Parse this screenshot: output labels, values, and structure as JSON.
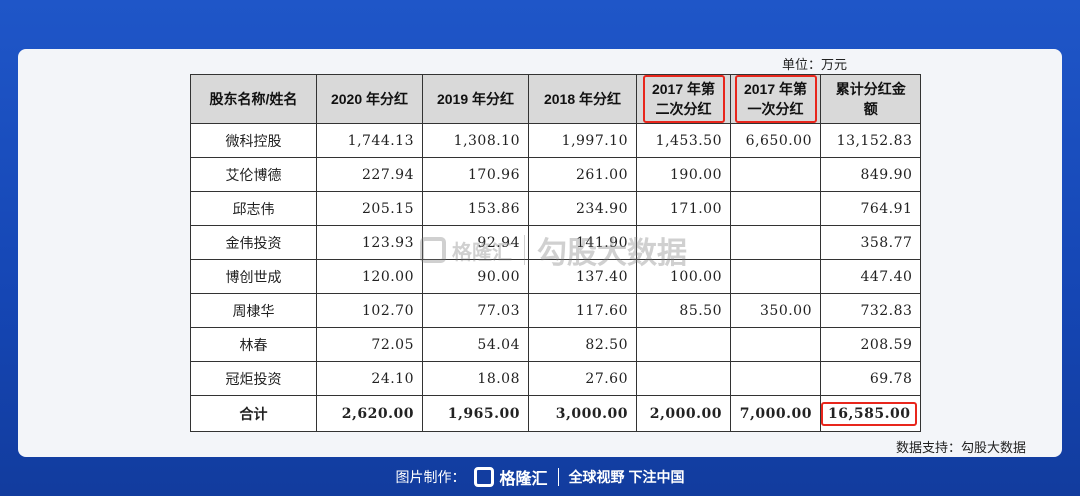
{
  "unit_label": "单位：万元",
  "table": {
    "headers": [
      "股东名称/姓名",
      "2020 年分红",
      "2019 年分红",
      "2018 年分红",
      "2017 年第二次分红",
      "2017 年第一次分红",
      "累计分红金额"
    ],
    "rows": [
      {
        "name": "微科控股",
        "v2020": "1,744.13",
        "v2019": "1,308.10",
        "v2018": "1,997.10",
        "v2017b": "1,453.50",
        "v2017a": "6,650.00",
        "total": "13,152.83"
      },
      {
        "name": "艾伦博德",
        "v2020": "227.94",
        "v2019": "170.96",
        "v2018": "261.00",
        "v2017b": "190.00",
        "v2017a": "",
        "total": "849.90"
      },
      {
        "name": "邱志伟",
        "v2020": "205.15",
        "v2019": "153.86",
        "v2018": "234.90",
        "v2017b": "171.00",
        "v2017a": "",
        "total": "764.91"
      },
      {
        "name": "金伟投资",
        "v2020": "123.93",
        "v2019": "92.94",
        "v2018": "141.90",
        "v2017b": "",
        "v2017a": "",
        "total": "358.77"
      },
      {
        "name": "博创世成",
        "v2020": "120.00",
        "v2019": "90.00",
        "v2018": "137.40",
        "v2017b": "100.00",
        "v2017a": "",
        "total": "447.40"
      },
      {
        "name": "周棣华",
        "v2020": "102.70",
        "v2019": "77.03",
        "v2018": "117.60",
        "v2017b": "85.50",
        "v2017a": "350.00",
        "total": "732.83"
      },
      {
        "name": "林春",
        "v2020": "72.05",
        "v2019": "54.04",
        "v2018": "82.50",
        "v2017b": "",
        "v2017a": "",
        "total": "208.59"
      },
      {
        "name": "冠炬投资",
        "v2020": "24.10",
        "v2019": "18.08",
        "v2018": "27.60",
        "v2017b": "",
        "v2017a": "",
        "total": "69.78"
      }
    ],
    "total_row": {
      "name": "合计",
      "v2020": "2,620.00",
      "v2019": "1,965.00",
      "v2018": "3,000.00",
      "v2017b": "2,000.00",
      "v2017a": "7,000.00",
      "total": "16,585.00"
    }
  },
  "watermark": {
    "brand": "格隆汇",
    "text": "勾股大数据"
  },
  "source_label": "数据支持：勾股大数据",
  "footer": {
    "made_by": "图片制作：",
    "brand": "格隆汇",
    "slogan": "全球视野 下注中国"
  },
  "colors": {
    "background": "#1546b4",
    "highlight": "#e8261c",
    "header_bg": "#d9d9d9"
  }
}
